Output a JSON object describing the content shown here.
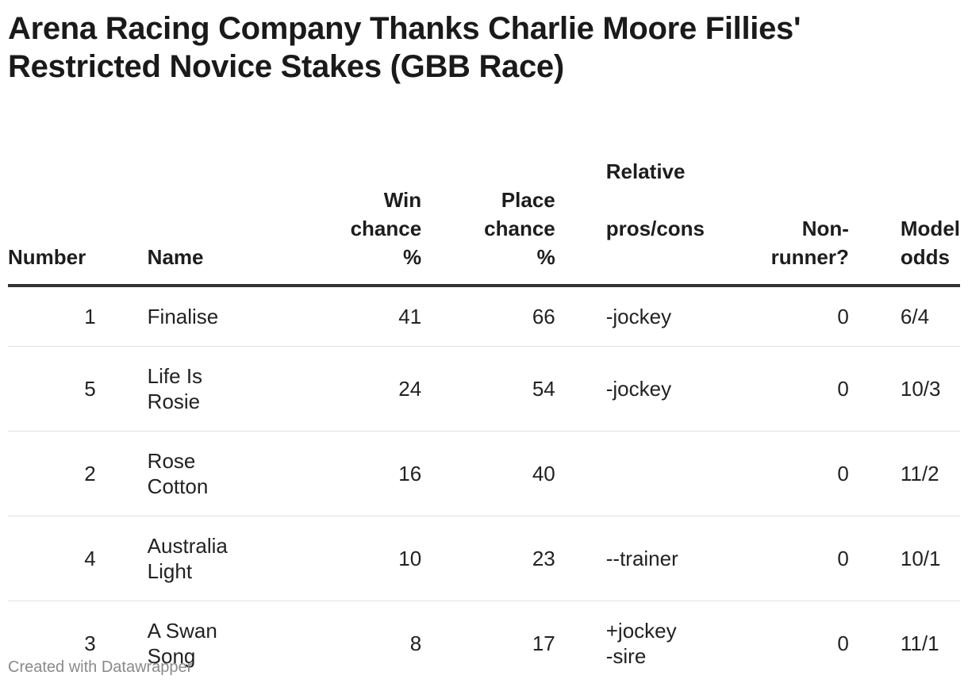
{
  "title": "Arena Racing Company Thanks Charlie Moore Fillies' Restricted Novice Stakes (GBB Race)",
  "columns": {
    "number": [
      "Number"
    ],
    "name": [
      "Name"
    ],
    "win": [
      "Win",
      "chance",
      "%"
    ],
    "place": [
      "Place",
      "chance",
      "%"
    ],
    "relative": [
      "Relative",
      "pros/cons"
    ],
    "nonrunner": [
      "Non-",
      "runner?"
    ],
    "odds": [
      "Model",
      "odds"
    ]
  },
  "rows": [
    {
      "number": "1",
      "name": "Finalise",
      "win": "41",
      "place": "66",
      "relative": "-jockey",
      "nonrunner": "0",
      "odds": "6/4"
    },
    {
      "number": "5",
      "name": "Life Is\nRosie",
      "win": "24",
      "place": "54",
      "relative": "-jockey",
      "nonrunner": "0",
      "odds": "10/3"
    },
    {
      "number": "2",
      "name": "Rose\nCotton",
      "win": "16",
      "place": "40",
      "relative": "",
      "nonrunner": "0",
      "odds": "11/2"
    },
    {
      "number": "4",
      "name": "Australia\nLight",
      "win": "10",
      "place": "23",
      "relative": "--trainer",
      "nonrunner": "0",
      "odds": "10/1"
    },
    {
      "number": "3",
      "name": "A Swan\nSong",
      "win": "8",
      "place": "17",
      "relative": "+jockey\n-sire",
      "nonrunner": "0",
      "odds": "11/1"
    }
  ],
  "footer": "Created with Datawrapper"
}
